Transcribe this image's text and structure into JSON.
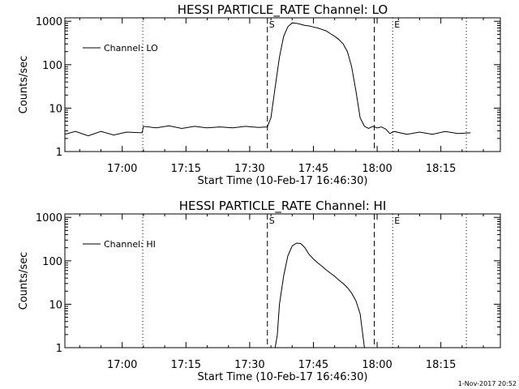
{
  "footer": {
    "timestamp": "1-Nov-2017 20:52"
  },
  "chart_data": [
    {
      "type": "line",
      "title": "HESSI PARTICLE_RATE Channel: LO",
      "xlabel": "Start Time (10-Feb-17 16:46:30)",
      "ylabel": "Counts/sec",
      "yscale": "log",
      "ylim": [
        1,
        1200
      ],
      "xlim": [
        "16:46:30",
        "18:29:00"
      ],
      "x_ticks": [
        "17:00",
        "17:15",
        "17:30",
        "17:45",
        "18:00",
        "18:15"
      ],
      "y_ticks": [
        "1",
        "10",
        "100",
        "1000"
      ],
      "legend": {
        "position": "top-left",
        "entries": [
          "Channel: LO"
        ]
      },
      "markers": [
        {
          "label": "S",
          "time": "17:34:10",
          "style": "dashed"
        },
        {
          "label": "E",
          "time": "18:03:40",
          "style": "dotted"
        }
      ],
      "vlines": [
        {
          "time": "17:04:50",
          "style": "dotted"
        },
        {
          "time": "17:59:20",
          "style": "dashed"
        },
        {
          "time": "18:21:00",
          "style": "dotted"
        }
      ],
      "series": [
        {
          "name": "Channel: LO",
          "x": [
            "16:46:30",
            "16:49:00",
            "16:52:00",
            "16:55:00",
            "16:58:00",
            "17:01:00",
            "17:04:40",
            "17:05:00",
            "17:08:00",
            "17:11:00",
            "17:14:00",
            "17:17:00",
            "17:20:00",
            "17:23:00",
            "17:26:00",
            "17:29:00",
            "17:32:00",
            "17:34:10",
            "17:35:00",
            "17:36:00",
            "17:37:00",
            "17:38:00",
            "17:39:00",
            "17:40:00",
            "17:41:00",
            "17:42:00",
            "17:43:00",
            "17:44:00",
            "17:45:00",
            "17:46:00",
            "17:47:00",
            "17:48:00",
            "17:49:00",
            "17:50:00",
            "17:51:00",
            "17:52:00",
            "17:53:00",
            "17:54:00",
            "17:55:00",
            "17:56:00",
            "17:57:00",
            "17:58:00",
            "17:59:00",
            "18:00:00",
            "18:01:00",
            "18:02:00",
            "18:03:00",
            "18:04:00",
            "18:07:00",
            "18:10:00",
            "18:13:00",
            "18:16:00",
            "18:19:00",
            "18:22:00"
          ],
          "y": [
            2.5,
            2.9,
            2.3,
            2.9,
            2.4,
            2.8,
            2.7,
            3.8,
            3.5,
            3.9,
            3.4,
            3.8,
            3.5,
            3.7,
            3.5,
            3.8,
            3.6,
            3.7,
            6,
            30,
            150,
            450,
            750,
            920,
            900,
            850,
            800,
            780,
            740,
            700,
            650,
            600,
            520,
            450,
            380,
            300,
            200,
            90,
            25,
            6,
            3.8,
            3.4,
            3.8,
            3.5,
            3.7,
            3.3,
            2.6,
            2.9,
            2.5,
            2.8,
            2.5,
            2.9,
            2.6,
            2.7
          ]
        }
      ]
    },
    {
      "type": "line",
      "title": "HESSI PARTICLE_RATE Channel: HI",
      "xlabel": "Start Time (10-Feb-17 16:46:30)",
      "ylabel": "Counts/sec",
      "yscale": "log",
      "ylim": [
        1,
        1200
      ],
      "xlim": [
        "16:46:30",
        "18:29:00"
      ],
      "x_ticks": [
        "17:00",
        "17:15",
        "17:30",
        "17:45",
        "18:00",
        "18:15"
      ],
      "y_ticks": [
        "1",
        "10",
        "100",
        "1000"
      ],
      "legend": {
        "position": "top-left",
        "entries": [
          "Channel: HI"
        ]
      },
      "markers": [
        {
          "label": "S",
          "time": "17:34:10",
          "style": "dashed"
        },
        {
          "label": "E",
          "time": "18:03:40",
          "style": "dotted"
        }
      ],
      "vlines": [
        {
          "time": "17:04:50",
          "style": "dotted"
        },
        {
          "time": "17:59:20",
          "style": "dashed"
        },
        {
          "time": "18:21:00",
          "style": "dotted"
        }
      ],
      "series": [
        {
          "name": "Channel: HI",
          "x": [
            "17:36:00",
            "17:36:30",
            "17:37:00",
            "17:38:00",
            "17:39:00",
            "17:40:00",
            "17:41:00",
            "17:42:00",
            "17:43:00",
            "17:44:00",
            "17:45:00",
            "17:46:00",
            "17:47:00",
            "17:48:00",
            "17:49:00",
            "17:50:00",
            "17:51:00",
            "17:52:00",
            "17:53:00",
            "17:54:00",
            "17:55:00",
            "17:56:00",
            "17:57:00"
          ],
          "y": [
            1,
            2,
            10,
            45,
            130,
            220,
            255,
            250,
            200,
            140,
            110,
            90,
            75,
            62,
            52,
            44,
            36,
            30,
            24,
            18,
            12,
            6,
            1
          ]
        }
      ]
    }
  ]
}
